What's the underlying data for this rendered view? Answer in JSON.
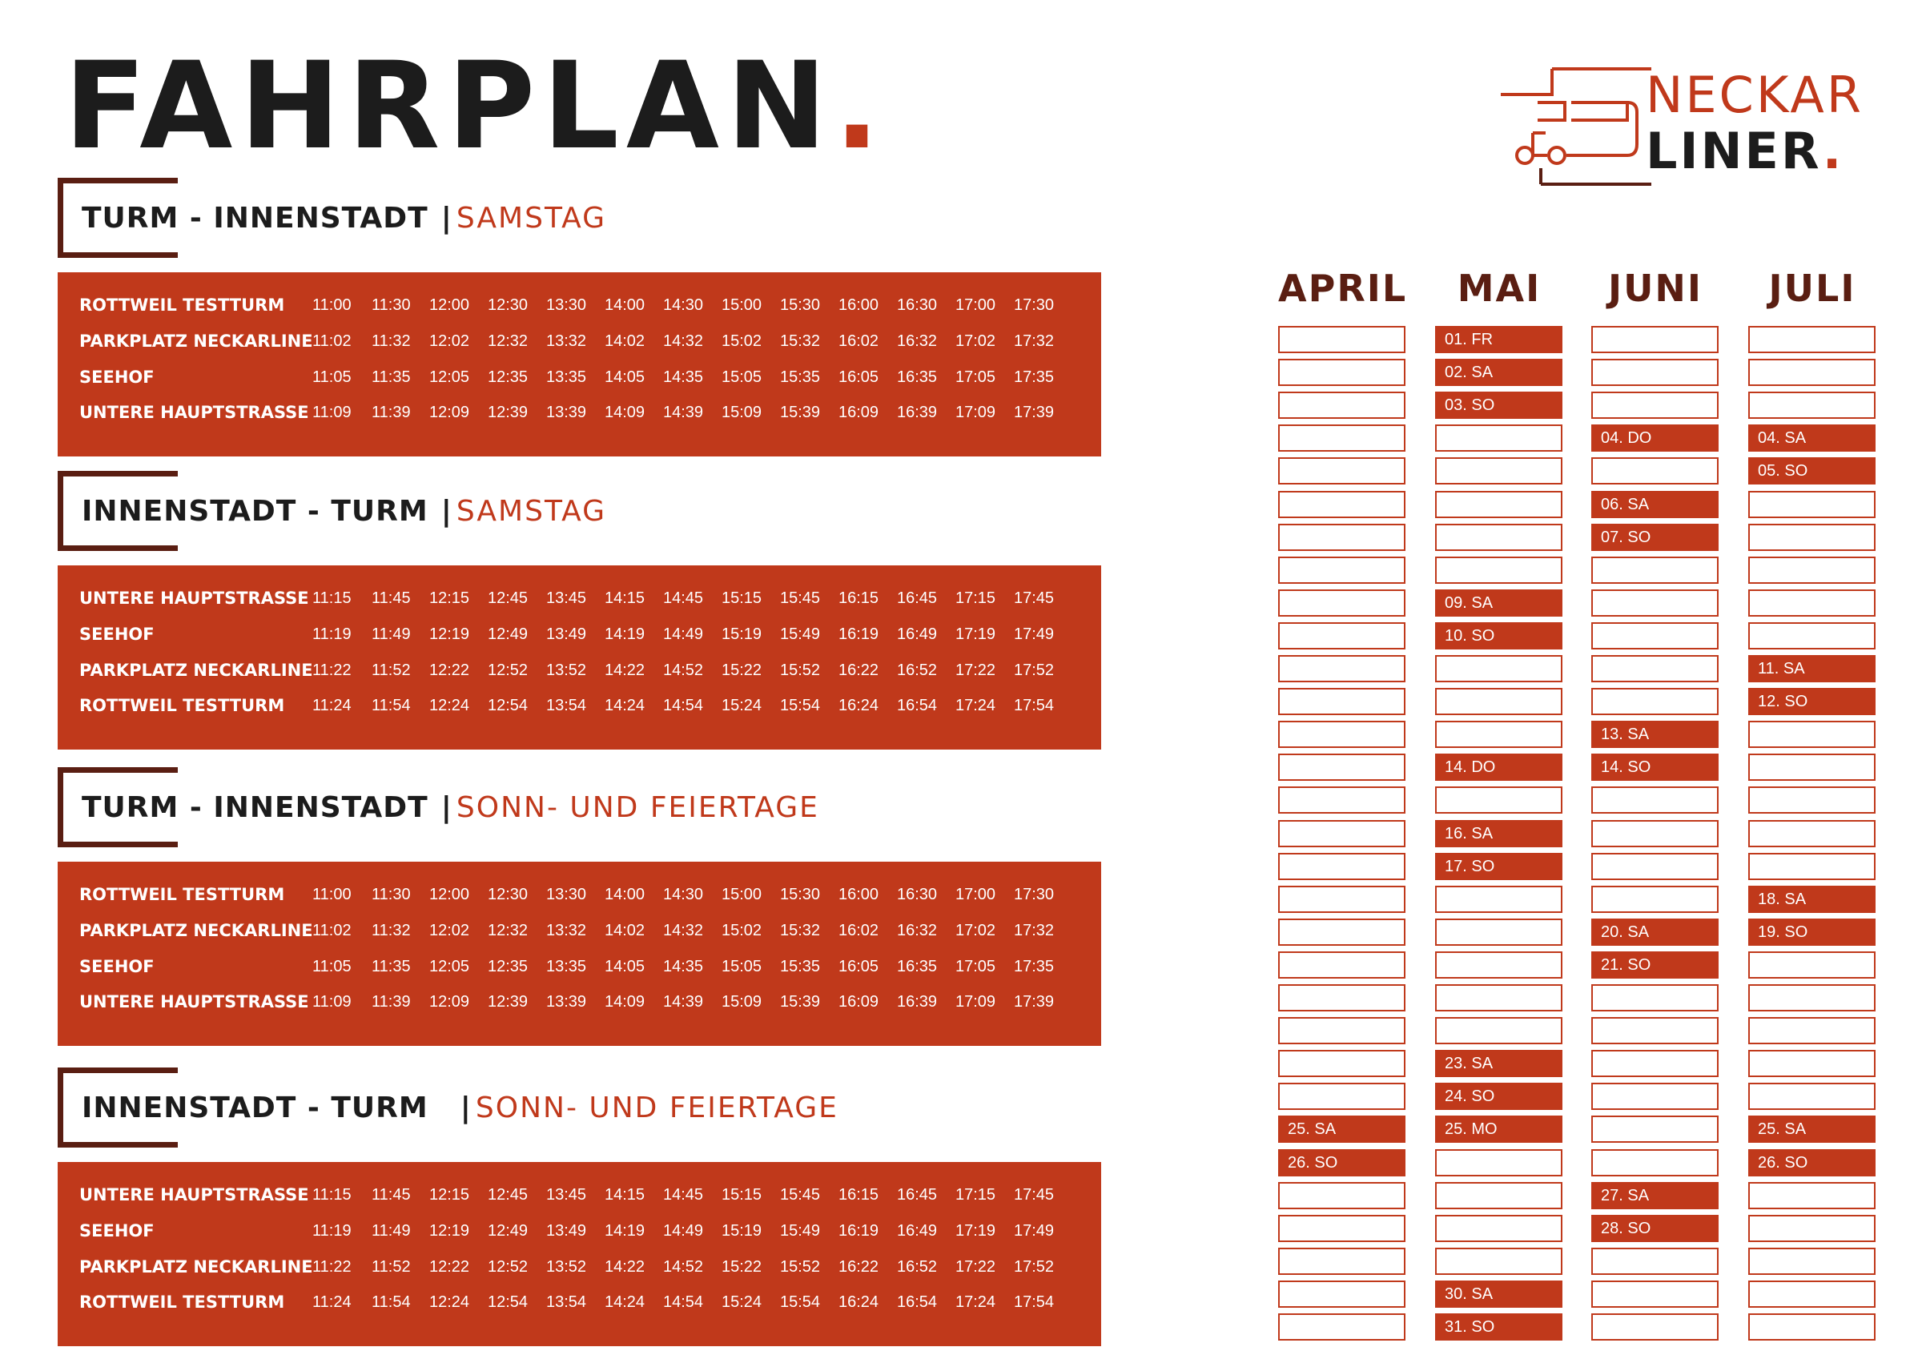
{
  "header": {
    "title": "FAHRPLAN",
    "title_dot": "."
  },
  "logo": {
    "line1": "NECKAR",
    "line2": "LINER",
    "line2_dot": "."
  },
  "sections": [
    {
      "route": "TURM - INNENSTADT",
      "pipe": "|",
      "day": "SAMSTAG",
      "rows": [
        {
          "stop": "ROTTWEIL TESTTURM",
          "times": [
            "11:00",
            "11:30",
            "12:00",
            "12:30",
            "13:30",
            "14:00",
            "14:30",
            "15:00",
            "15:30",
            "16:00",
            "16:30",
            "17:00",
            "17:30"
          ]
        },
        {
          "stop": "PARKPLATZ NECKARLINE",
          "times": [
            "11:02",
            "11:32",
            "12:02",
            "12:32",
            "13:32",
            "14:02",
            "14:32",
            "15:02",
            "15:32",
            "16:02",
            "16:32",
            "17:02",
            "17:32"
          ]
        },
        {
          "stop": "SEEHOF",
          "times": [
            "11:05",
            "11:35",
            "12:05",
            "12:35",
            "13:35",
            "14:05",
            "14:35",
            "15:05",
            "15:35",
            "16:05",
            "16:35",
            "17:05",
            "17:35"
          ]
        },
        {
          "stop": "UNTERE HAUPTSTRASSE",
          "times": [
            "11:09",
            "11:39",
            "12:09",
            "12:39",
            "13:39",
            "14:09",
            "14:39",
            "15:09",
            "15:39",
            "16:09",
            "16:39",
            "17:09",
            "17:39"
          ]
        }
      ]
    },
    {
      "route": "INNENSTADT - TURM",
      "pipe": "|",
      "day": "SAMSTAG",
      "rows": [
        {
          "stop": "UNTERE HAUPTSTRASSE",
          "times": [
            "11:15",
            "11:45",
            "12:15",
            "12:45",
            "13:45",
            "14:15",
            "14:45",
            "15:15",
            "15:45",
            "16:15",
            "16:45",
            "17:15",
            "17:45"
          ]
        },
        {
          "stop": "SEEHOF",
          "times": [
            "11:19",
            "11:49",
            "12:19",
            "12:49",
            "13:49",
            "14:19",
            "14:49",
            "15:19",
            "15:49",
            "16:19",
            "16:49",
            "17:19",
            "17:49"
          ]
        },
        {
          "stop": "PARKPLATZ NECKARLINE",
          "times": [
            "11:22",
            "11:52",
            "12:22",
            "12:52",
            "13:52",
            "14:22",
            "14:52",
            "15:22",
            "15:52",
            "16:22",
            "16:52",
            "17:22",
            "17:52"
          ]
        },
        {
          "stop": "ROTTWEIL TESTTURM",
          "times": [
            "11:24",
            "11:54",
            "12:24",
            "12:54",
            "13:54",
            "14:24",
            "14:54",
            "15:24",
            "15:54",
            "16:24",
            "16:54",
            "17:24",
            "17:54"
          ]
        }
      ]
    },
    {
      "route": "TURM - INNENSTADT",
      "pipe": "|",
      "day": "SONN- UND FEIERTAGE",
      "rows": [
        {
          "stop": "ROTTWEIL TESTTURM",
          "times": [
            "11:00",
            "11:30",
            "12:00",
            "12:30",
            "13:30",
            "14:00",
            "14:30",
            "15:00",
            "15:30",
            "16:00",
            "16:30",
            "17:00",
            "17:30"
          ]
        },
        {
          "stop": "PARKPLATZ NECKARLINE",
          "times": [
            "11:02",
            "11:32",
            "12:02",
            "12:32",
            "13:32",
            "14:02",
            "14:32",
            "15:02",
            "15:32",
            "16:02",
            "16:32",
            "17:02",
            "17:32"
          ]
        },
        {
          "stop": "SEEHOF",
          "times": [
            "11:05",
            "11:35",
            "12:05",
            "12:35",
            "13:35",
            "14:05",
            "14:35",
            "15:05",
            "15:35",
            "16:05",
            "16:35",
            "17:05",
            "17:35"
          ]
        },
        {
          "stop": "UNTERE HAUPTSTRASSE",
          "times": [
            "11:09",
            "11:39",
            "12:09",
            "12:39",
            "13:39",
            "14:09",
            "14:39",
            "15:09",
            "15:39",
            "16:09",
            "16:39",
            "17:09",
            "17:39"
          ]
        }
      ]
    },
    {
      "route": "INNENSTADT - TURM",
      "pipe": "|",
      "day": "SONN- UND FEIERTAGE",
      "rows": [
        {
          "stop": "UNTERE HAUPTSTRASSE",
          "times": [
            "11:15",
            "11:45",
            "12:15",
            "12:45",
            "13:45",
            "14:15",
            "14:45",
            "15:15",
            "15:45",
            "16:15",
            "16:45",
            "17:15",
            "17:45"
          ]
        },
        {
          "stop": "SEEHOF",
          "times": [
            "11:19",
            "11:49",
            "12:19",
            "12:49",
            "13:49",
            "14:19",
            "14:49",
            "15:19",
            "15:49",
            "16:19",
            "16:49",
            "17:19",
            "17:49"
          ]
        },
        {
          "stop": "PARKPLATZ NECKARLINE",
          "times": [
            "11:22",
            "11:52",
            "12:22",
            "12:52",
            "13:52",
            "14:22",
            "14:52",
            "15:22",
            "15:52",
            "16:22",
            "16:52",
            "17:22",
            "17:52"
          ]
        },
        {
          "stop": "ROTTWEIL TESTTURM",
          "times": [
            "11:24",
            "11:54",
            "12:24",
            "12:54",
            "13:54",
            "14:24",
            "14:54",
            "15:24",
            "15:54",
            "16:24",
            "16:54",
            "17:24",
            "17:54"
          ]
        }
      ]
    }
  ],
  "calendar": {
    "months": [
      {
        "name": "APRIL",
        "cells": [
          "",
          "",
          "",
          "",
          "",
          "",
          "",
          "",
          "",
          "",
          "",
          "",
          "",
          "",
          "",
          "",
          "",
          "",
          "",
          "",
          "",
          "",
          "",
          "",
          "25. SA",
          "26. SO",
          "",
          "",
          "",
          "",
          ""
        ]
      },
      {
        "name": "MAI",
        "cells": [
          "01. FR",
          "02. SA",
          "03. SO",
          "",
          "",
          "",
          "",
          "",
          "09. SA",
          "10. SO",
          "",
          "",
          "",
          "14. DO",
          "",
          "16. SA",
          "17. SO",
          "",
          "",
          "",
          "",
          "",
          "23. SA",
          "24. SO",
          "25. MO",
          "",
          "",
          "",
          "",
          "30. SA",
          "31. SO"
        ]
      },
      {
        "name": "JUNI",
        "cells": [
          "",
          "",
          "",
          "04. DO",
          "",
          "06. SA",
          "07. SO",
          "",
          "",
          "",
          "",
          "",
          "13. SA",
          "14. SO",
          "",
          "",
          "",
          "",
          "20. SA",
          "21. SO",
          "",
          "",
          "",
          "",
          "",
          "",
          "27. SA",
          "28. SO",
          "",
          "",
          ""
        ]
      },
      {
        "name": "JULI",
        "cells": [
          "",
          "",
          "",
          "04. SA",
          "05. SO",
          "",
          "",
          "",
          "",
          "",
          "11. SA",
          "12. SO",
          "",
          "",
          "",
          "",
          "",
          "18. SA",
          "19. SO",
          "",
          "",
          "",
          "",
          "",
          "25. SA",
          "26. SO",
          "",
          "",
          "",
          "",
          ""
        ]
      }
    ]
  },
  "colors": {
    "accent": "#c0391b",
    "dark": "#1c1c1c",
    "brown": "#5a1e12"
  }
}
